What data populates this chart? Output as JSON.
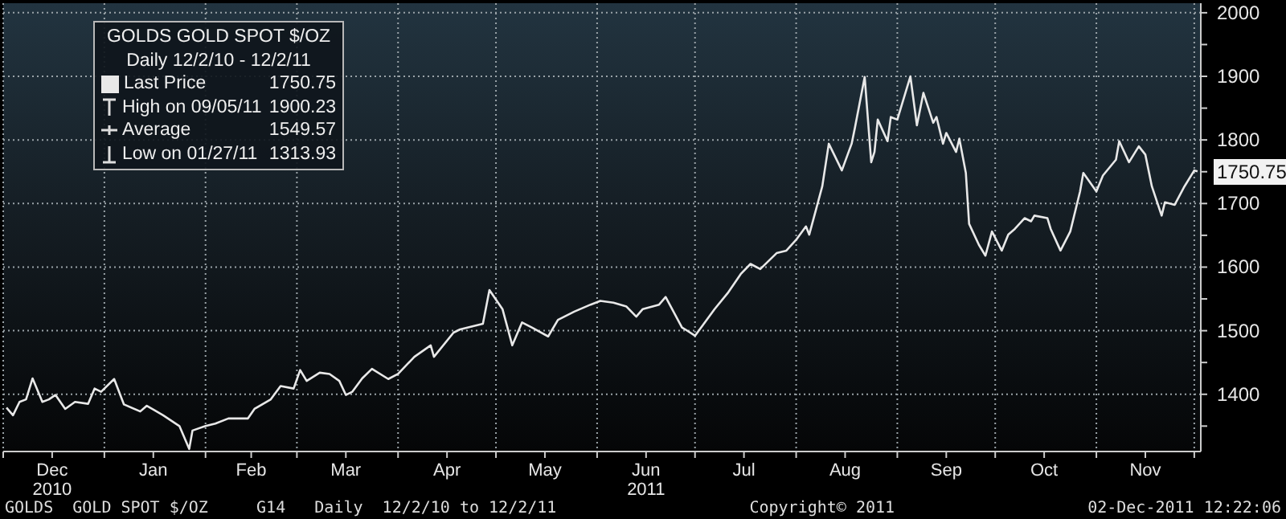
{
  "chart_data": {
    "type": "line",
    "title": "GOLDS  GOLD SPOT $/OZ",
    "subtitle": "Daily 12/2/10 - 12/2/11",
    "x": [
      "2010-12-02",
      "2010-12-04",
      "2010-12-06",
      "2010-12-08",
      "2010-12-10",
      "2010-12-13",
      "2010-12-15",
      "2010-12-17",
      "2010-12-20",
      "2010-12-23",
      "2010-12-27",
      "2010-12-29",
      "2010-12-31",
      "2011-01-04",
      "2011-01-07",
      "2011-01-12",
      "2011-01-14",
      "2011-01-19",
      "2011-01-24",
      "2011-01-27",
      "2011-01-28",
      "2011-02-01",
      "2011-02-04",
      "2011-02-08",
      "2011-02-14",
      "2011-02-16",
      "2011-02-21",
      "2011-02-24",
      "2011-02-28",
      "2011-03-02",
      "2011-03-04",
      "2011-03-08",
      "2011-03-11",
      "2011-03-14",
      "2011-03-16",
      "2011-03-18",
      "2011-03-21",
      "2011-03-24",
      "2011-03-29",
      "2011-04-01",
      "2011-04-06",
      "2011-04-11",
      "2011-04-12",
      "2011-04-18",
      "2011-04-20",
      "2011-04-27",
      "2011-04-29",
      "2011-05-03",
      "2011-05-06",
      "2011-05-09",
      "2011-05-12",
      "2011-05-17",
      "2011-05-20",
      "2011-05-25",
      "2011-05-30",
      "2011-06-02",
      "2011-06-06",
      "2011-06-10",
      "2011-06-13",
      "2011-06-15",
      "2011-06-20",
      "2011-06-22",
      "2011-06-27",
      "2011-06-28",
      "2011-07-01",
      "2011-07-07",
      "2011-07-11",
      "2011-07-15",
      "2011-07-18",
      "2011-07-21",
      "2011-07-26",
      "2011-07-29",
      "2011-08-01",
      "2011-08-04",
      "2011-08-05",
      "2011-08-09",
      "2011-08-11",
      "2011-08-15",
      "2011-08-18",
      "2011-08-19",
      "2011-08-22",
      "2011-08-24",
      "2011-08-25",
      "2011-08-26",
      "2011-08-29",
      "2011-08-30",
      "2011-09-01",
      "2011-09-05",
      "2011-09-07",
      "2011-09-09",
      "2011-09-12",
      "2011-09-13",
      "2011-09-15",
      "2011-09-16",
      "2011-09-19",
      "2011-09-20",
      "2011-09-22",
      "2011-09-23",
      "2011-09-26",
      "2011-09-28",
      "2011-09-30",
      "2011-10-03",
      "2011-10-05",
      "2011-10-07",
      "2011-10-10",
      "2011-10-12",
      "2011-10-13",
      "2011-10-17",
      "2011-10-18",
      "2011-10-21",
      "2011-10-24",
      "2011-10-27",
      "2011-10-28",
      "2011-11-01",
      "2011-11-03",
      "2011-11-07",
      "2011-11-08",
      "2011-11-11",
      "2011-11-14",
      "2011-11-16",
      "2011-11-18",
      "2011-11-21",
      "2011-11-22",
      "2011-11-25",
      "2011-11-28",
      "2011-12-01",
      "2011-12-02"
    ],
    "series": [
      {
        "name": "Last Price",
        "color": "#e8e8e8",
        "values": [
          1379,
          1367,
          1388,
          1392,
          1425,
          1388,
          1392,
          1399,
          1377,
          1388,
          1385,
          1409,
          1404,
          1424,
          1384,
          1373,
          1382,
          1367,
          1350,
          1314,
          1343,
          1350,
          1354,
          1362,
          1362,
          1377,
          1392,
          1413,
          1409,
          1438,
          1421,
          1434,
          1432,
          1421,
          1399,
          1404,
          1425,
          1440,
          1424,
          1432,
          1459,
          1477,
          1459,
          1497,
          1502,
          1511,
          1564,
          1534,
          1477,
          1513,
          1505,
          1491,
          1517,
          1530,
          1541,
          1547,
          1544,
          1538,
          1522,
          1534,
          1541,
          1553,
          1505,
          1502,
          1492,
          1534,
          1559,
          1589,
          1605,
          1597,
          1622,
          1626,
          1643,
          1664,
          1651,
          1727,
          1794,
          1752,
          1794,
          1819,
          1899,
          1765,
          1781,
          1832,
          1798,
          1836,
          1832,
          1900,
          1823,
          1874,
          1827,
          1836,
          1794,
          1811,
          1781,
          1802,
          1748,
          1668,
          1635,
          1618,
          1656,
          1626,
          1651,
          1660,
          1677,
          1672,
          1681,
          1677,
          1660,
          1626,
          1656,
          1719,
          1748,
          1719,
          1744,
          1769,
          1798,
          1765,
          1790,
          1777,
          1727,
          1681,
          1702,
          1698,
          1727,
          1752,
          1750.75
        ]
      }
    ],
    "xlim": [
      "2010-12-01",
      "2011-12-03"
    ],
    "xticks": [
      {
        "value": "2010-12-01",
        "label": null
      },
      {
        "value": "2010-12-16",
        "label": "Dec\n2010"
      },
      {
        "value": "2011-01-01",
        "label": null
      },
      {
        "value": "2011-01-16",
        "label": "Jan"
      },
      {
        "value": "2011-02-01",
        "label": null
      },
      {
        "value": "2011-02-15",
        "label": "Feb"
      },
      {
        "value": "2011-03-01",
        "label": null
      },
      {
        "value": "2011-03-16",
        "label": "Mar"
      },
      {
        "value": "2011-04-01",
        "label": null
      },
      {
        "value": "2011-04-16",
        "label": "Apr"
      },
      {
        "value": "2011-05-01",
        "label": null
      },
      {
        "value": "2011-05-16",
        "label": "May"
      },
      {
        "value": "2011-06-01",
        "label": null
      },
      {
        "value": "2011-06-16",
        "label": "Jun\n2011"
      },
      {
        "value": "2011-07-01",
        "label": null
      },
      {
        "value": "2011-07-16",
        "label": "Jul"
      },
      {
        "value": "2011-08-01",
        "label": null
      },
      {
        "value": "2011-08-16",
        "label": "Aug"
      },
      {
        "value": "2011-09-01",
        "label": null
      },
      {
        "value": "2011-09-16",
        "label": "Sep"
      },
      {
        "value": "2011-10-01",
        "label": null
      },
      {
        "value": "2011-10-16",
        "label": "Oct"
      },
      {
        "value": "2011-11-01",
        "label": null
      },
      {
        "value": "2011-11-16",
        "label": "Nov"
      },
      {
        "value": "2011-12-01",
        "label": null
      }
    ],
    "ylim": [
      1310,
      2015
    ],
    "yticks": [
      {
        "value": 1350,
        "label": null
      },
      1400,
      {
        "value": 1450,
        "label": null
      },
      1500,
      {
        "value": 1550,
        "label": null
      },
      1600,
      {
        "value": 1650,
        "label": null
      },
      1700,
      {
        "value": 1750,
        "label": null
      },
      1800,
      {
        "value": 1850,
        "label": null
      },
      1900,
      {
        "value": 1950,
        "label": null
      },
      2000
    ],
    "grid": true,
    "legend": "top left",
    "marker": "none",
    "line_style": "solid",
    "annotations": [
      {
        "text": "1750.75",
        "x": "2011-12-02",
        "y": 1750.75
      },
      "High on 09/05/11 1900.23",
      "Average 1549.57",
      "Low on 01/27/11 1313.93",
      "GOLDS  GOLD SPOT $/OZ     G14   Daily  12/2/10 to 12/2/11",
      "Copyright© 2011",
      "02-Dec-2011 12:22:06"
    ]
  }
}
